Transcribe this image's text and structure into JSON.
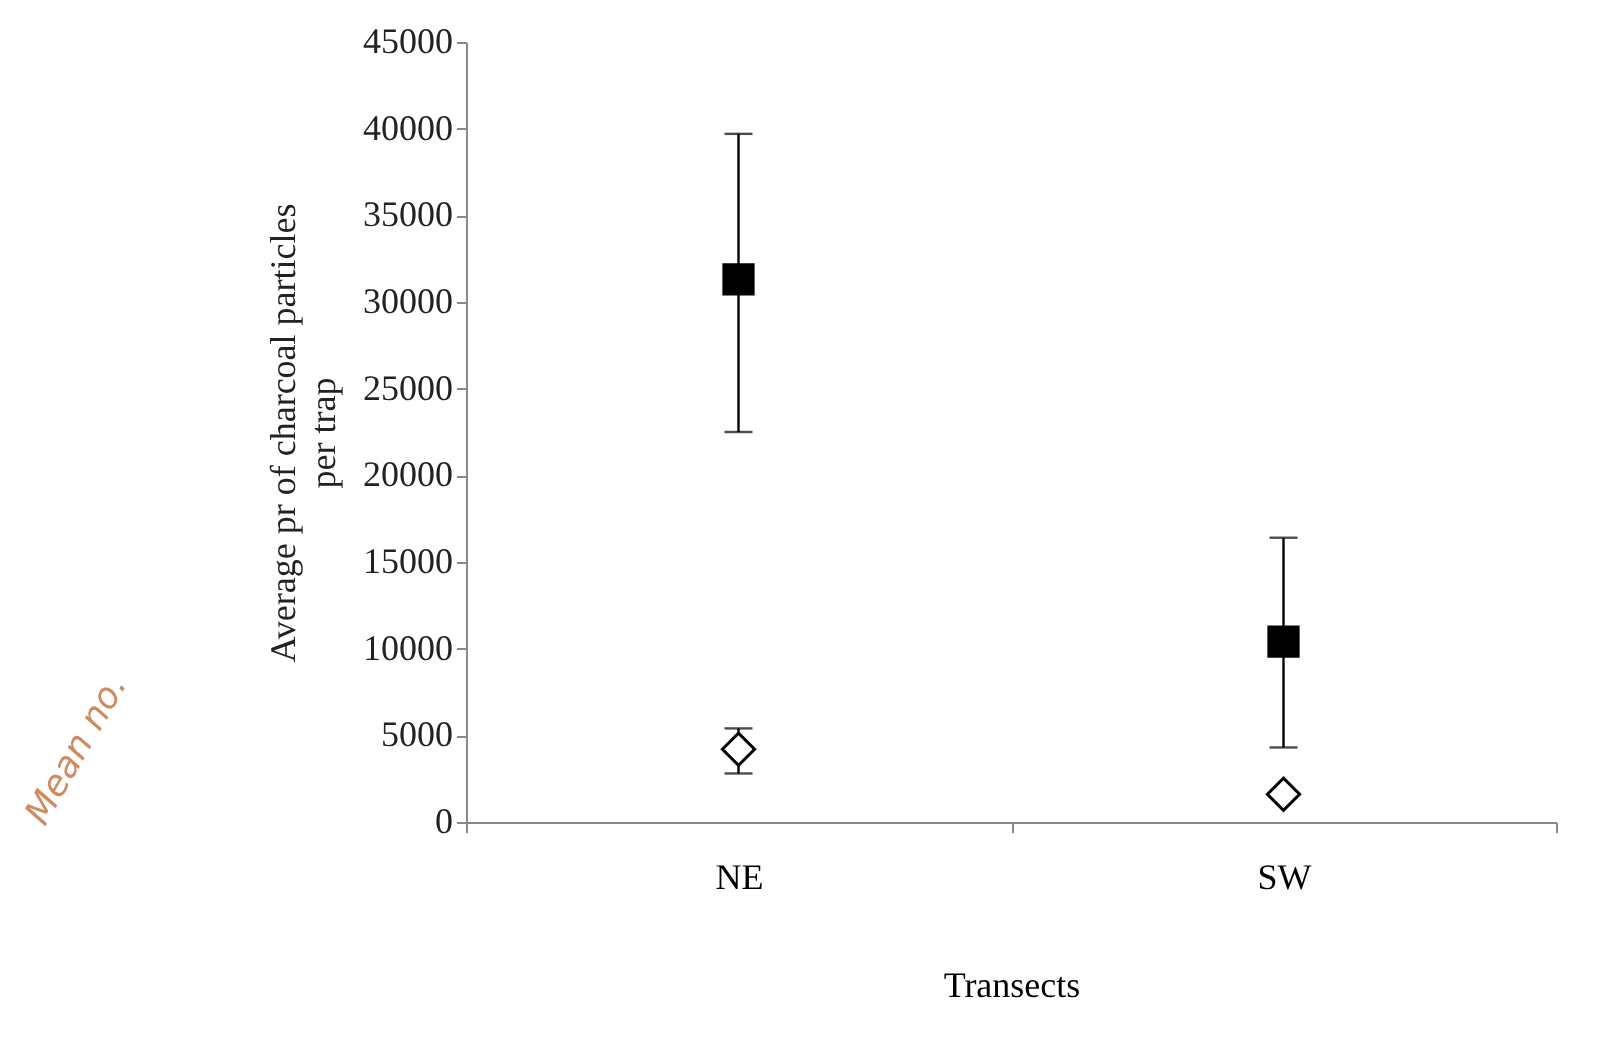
{
  "chart_data": {
    "type": "scatter",
    "categories": [
      "NE",
      "SW"
    ],
    "series": [
      {
        "color": "#000000",
        "marker": "square",
        "values": [
          31300,
          10400
        ],
        "errors": [
          [
            22500,
            39700
          ],
          [
            4300,
            16400
          ]
        ]
      },
      {
        "color": "#000000",
        "marker": "diamond",
        "values": [
          4200,
          1600
        ],
        "errors": [
          [
            2800,
            5400
          ],
          null
        ]
      }
    ],
    "xlabel": "Transects",
    "ylabel": "Average pr of charcoal particles\nper trap",
    "annotations": [
      "Mean no."
    ],
    "ylim": [
      0,
      45000
    ],
    "yticks": [
      0,
      5000,
      10000,
      15000,
      20000,
      25000,
      30000,
      35000,
      40000,
      45000
    ],
    "grid": false,
    "legend": false
  }
}
